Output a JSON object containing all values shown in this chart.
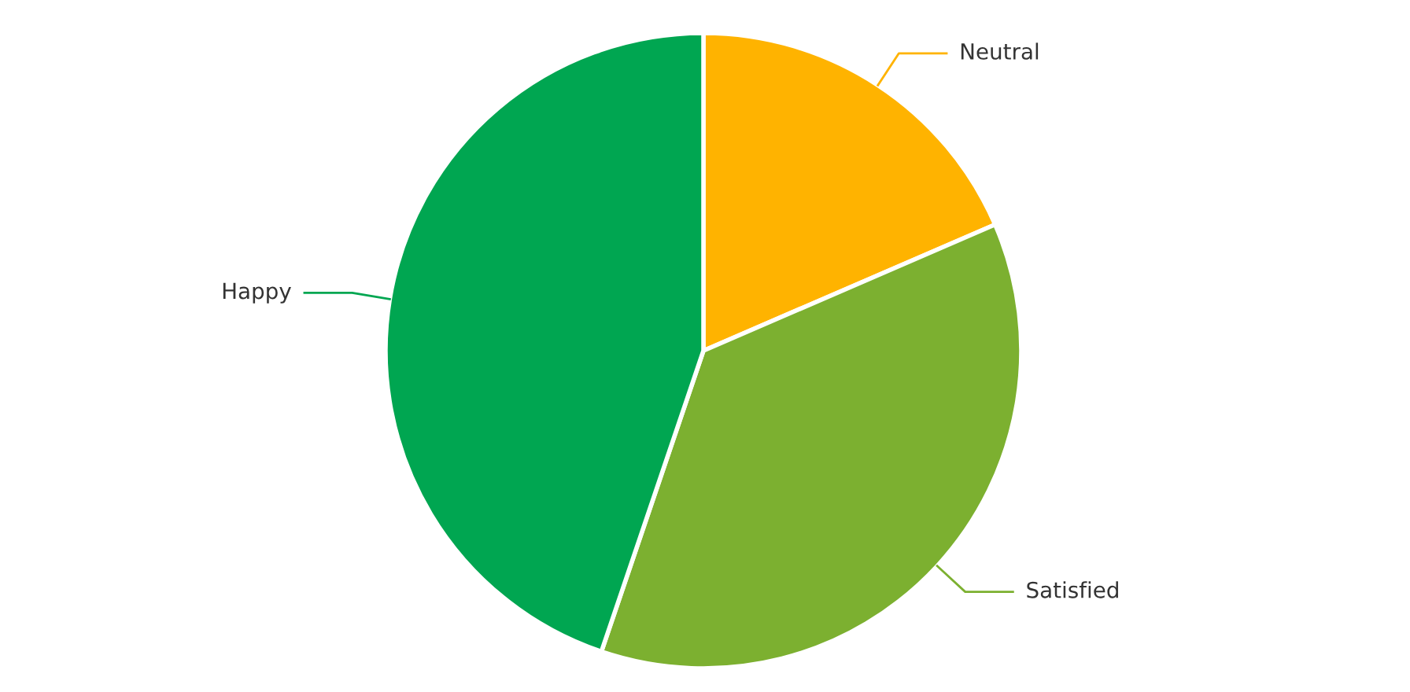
{
  "chart_data": {
    "type": "pie",
    "categories": [
      "Neutral",
      "Satisfied",
      "Happy"
    ],
    "values": [
      18.5,
      36.7,
      44.8
    ],
    "colors": [
      "#ffb300",
      "#7cb030",
      "#00a651"
    ]
  }
}
